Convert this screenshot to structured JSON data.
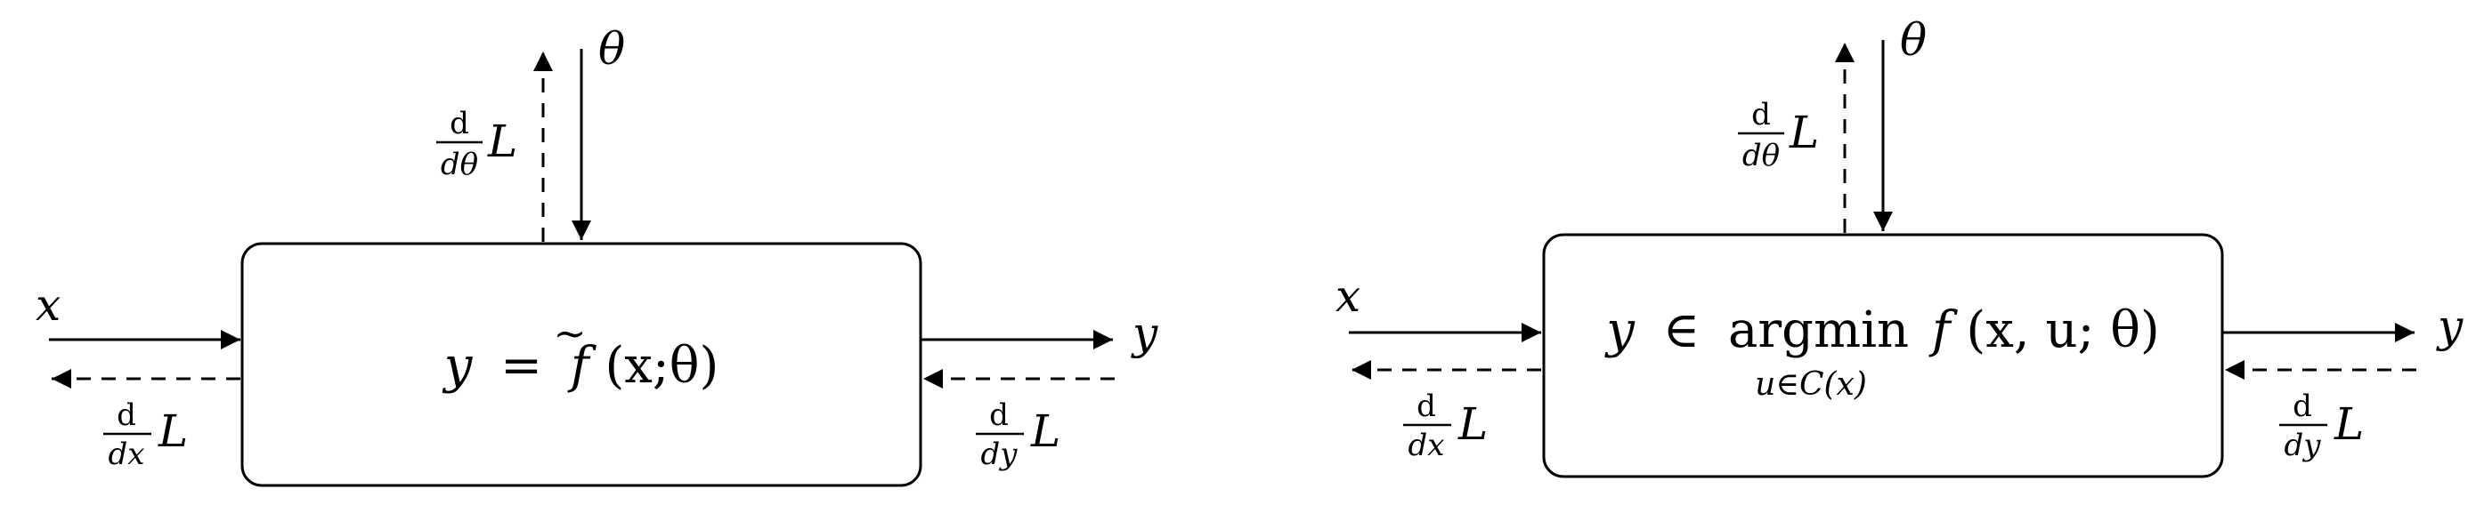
{
  "left": {
    "box_label": {
      "y": "y",
      "eq": "=",
      "f": "f",
      "tilde": "~",
      "args": "(x;θ)"
    },
    "input": "x",
    "output": "y",
    "param": "θ",
    "grad_theta": {
      "num": "d",
      "den": "dθ",
      "L": "L"
    },
    "grad_x": {
      "num": "d",
      "den": "dx",
      "L": "L"
    },
    "grad_y": {
      "num": "d",
      "den": "dy",
      "L": "L"
    }
  },
  "right": {
    "box_label": {
      "y": "y",
      "in": "∈",
      "op": "argmin",
      "f": "f",
      "args": "(x, u; θ)",
      "sub": "u∈C(x)"
    },
    "input": "x",
    "output": "y",
    "param": "θ",
    "grad_theta": {
      "num": "d",
      "den": "dθ",
      "L": "L"
    },
    "grad_x": {
      "num": "d",
      "den": "dx",
      "L": "L"
    },
    "grad_y": {
      "num": "d",
      "den": "dy",
      "L": "L"
    }
  }
}
